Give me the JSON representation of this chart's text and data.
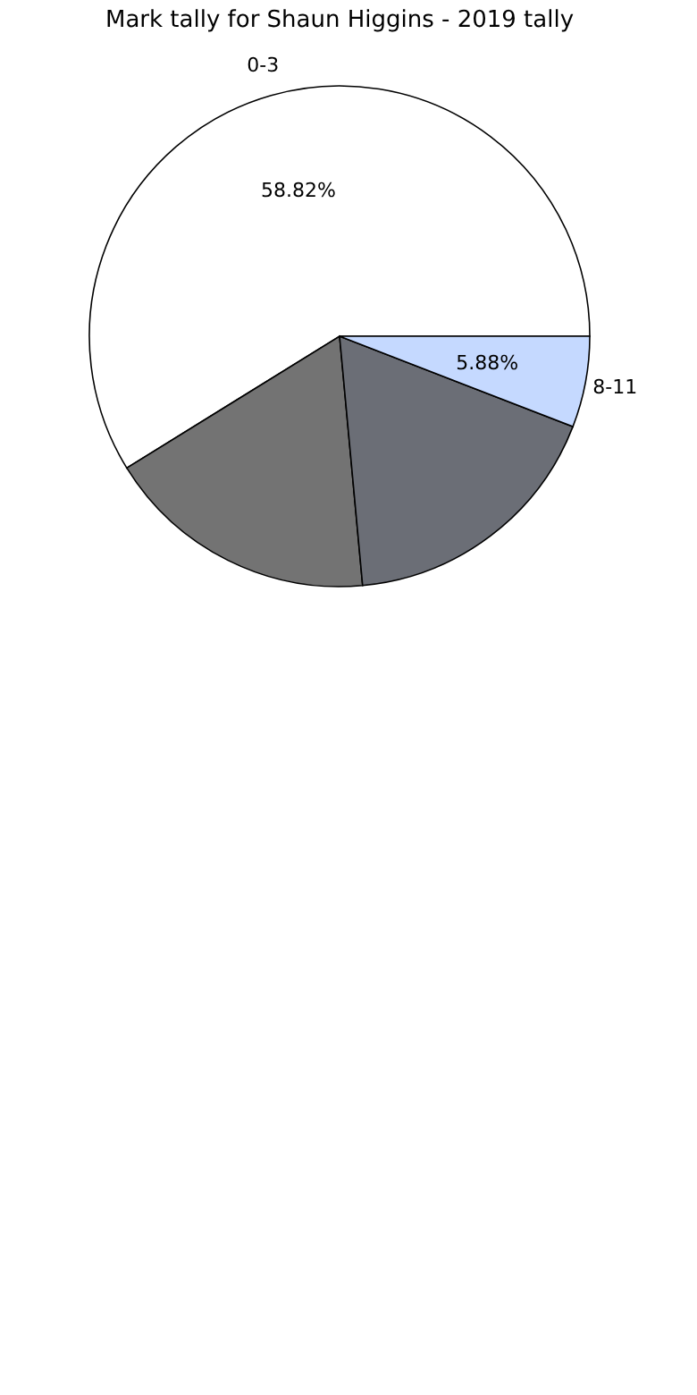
{
  "chart_data": {
    "type": "pie",
    "title": "Mark tally for Shaun Higgins - 2019 tally",
    "categories": [
      "0-3",
      null,
      null,
      "8-11"
    ],
    "values": [
      58.82,
      17.65,
      17.65,
      5.88
    ],
    "colors": [
      "#ffffff",
      "#737373",
      "#6b6e76",
      "#c5d9ff"
    ],
    "value_labels": [
      "58.82%",
      null,
      null,
      "5.88%"
    ],
    "legend": false
  }
}
